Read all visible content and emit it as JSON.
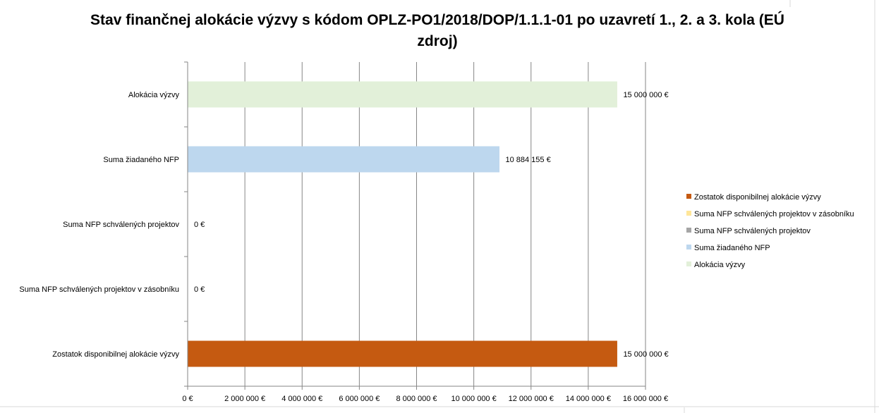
{
  "chart_data": {
    "type": "bar",
    "orientation": "horizontal",
    "title": "Stav finančnej alokácie výzvy s kódom OPLZ-PO1/2018/DOP/1.1.1-01 po uzavretí 1., 2. a 3. kola (EÚ zdroj)",
    "categories": [
      "Alokácia výzvy",
      "Suma žiadaného NFP",
      "Suma NFP schválených projektov",
      "Suma NFP schválených projektov v zásobníku",
      "Zostatok disponibilnej alokácie výzvy"
    ],
    "values": [
      15000000,
      10884155,
      0,
      0,
      15000000
    ],
    "data_labels": [
      "15 000 000 €",
      "10 884 155 €",
      "0 €",
      "0 €",
      "15 000 000 €"
    ],
    "colors": [
      "#E2F0D9",
      "#BDD7EE",
      "#A5A5A5",
      "#FFE699",
      "#C55A11"
    ],
    "xlim": [
      0,
      16000000
    ],
    "x_ticks": [
      0,
      2000000,
      4000000,
      6000000,
      8000000,
      10000000,
      12000000,
      14000000,
      16000000
    ],
    "x_tick_labels": [
      "0 €",
      "2 000 000 €",
      "4 000 000 €",
      "6 000 000 €",
      "8 000 000 €",
      "10 000 000 €",
      "12 000 000 €",
      "14 000 000 €",
      "16 000 000 €"
    ],
    "grid": true,
    "legend_position": "right",
    "legend": [
      {
        "label": "Zostatok disponibilnej alokácie výzvy",
        "color": "#C55A11"
      },
      {
        "label": "Suma NFP schválených projektov v zásobníku",
        "color": "#FFE699"
      },
      {
        "label": "Suma NFP schválených projektov",
        "color": "#A5A5A5"
      },
      {
        "label": "Suma žiadaného NFP",
        "color": "#BDD7EE"
      },
      {
        "label": "Alokácia výzvy",
        "color": "#E2F0D9"
      }
    ]
  }
}
